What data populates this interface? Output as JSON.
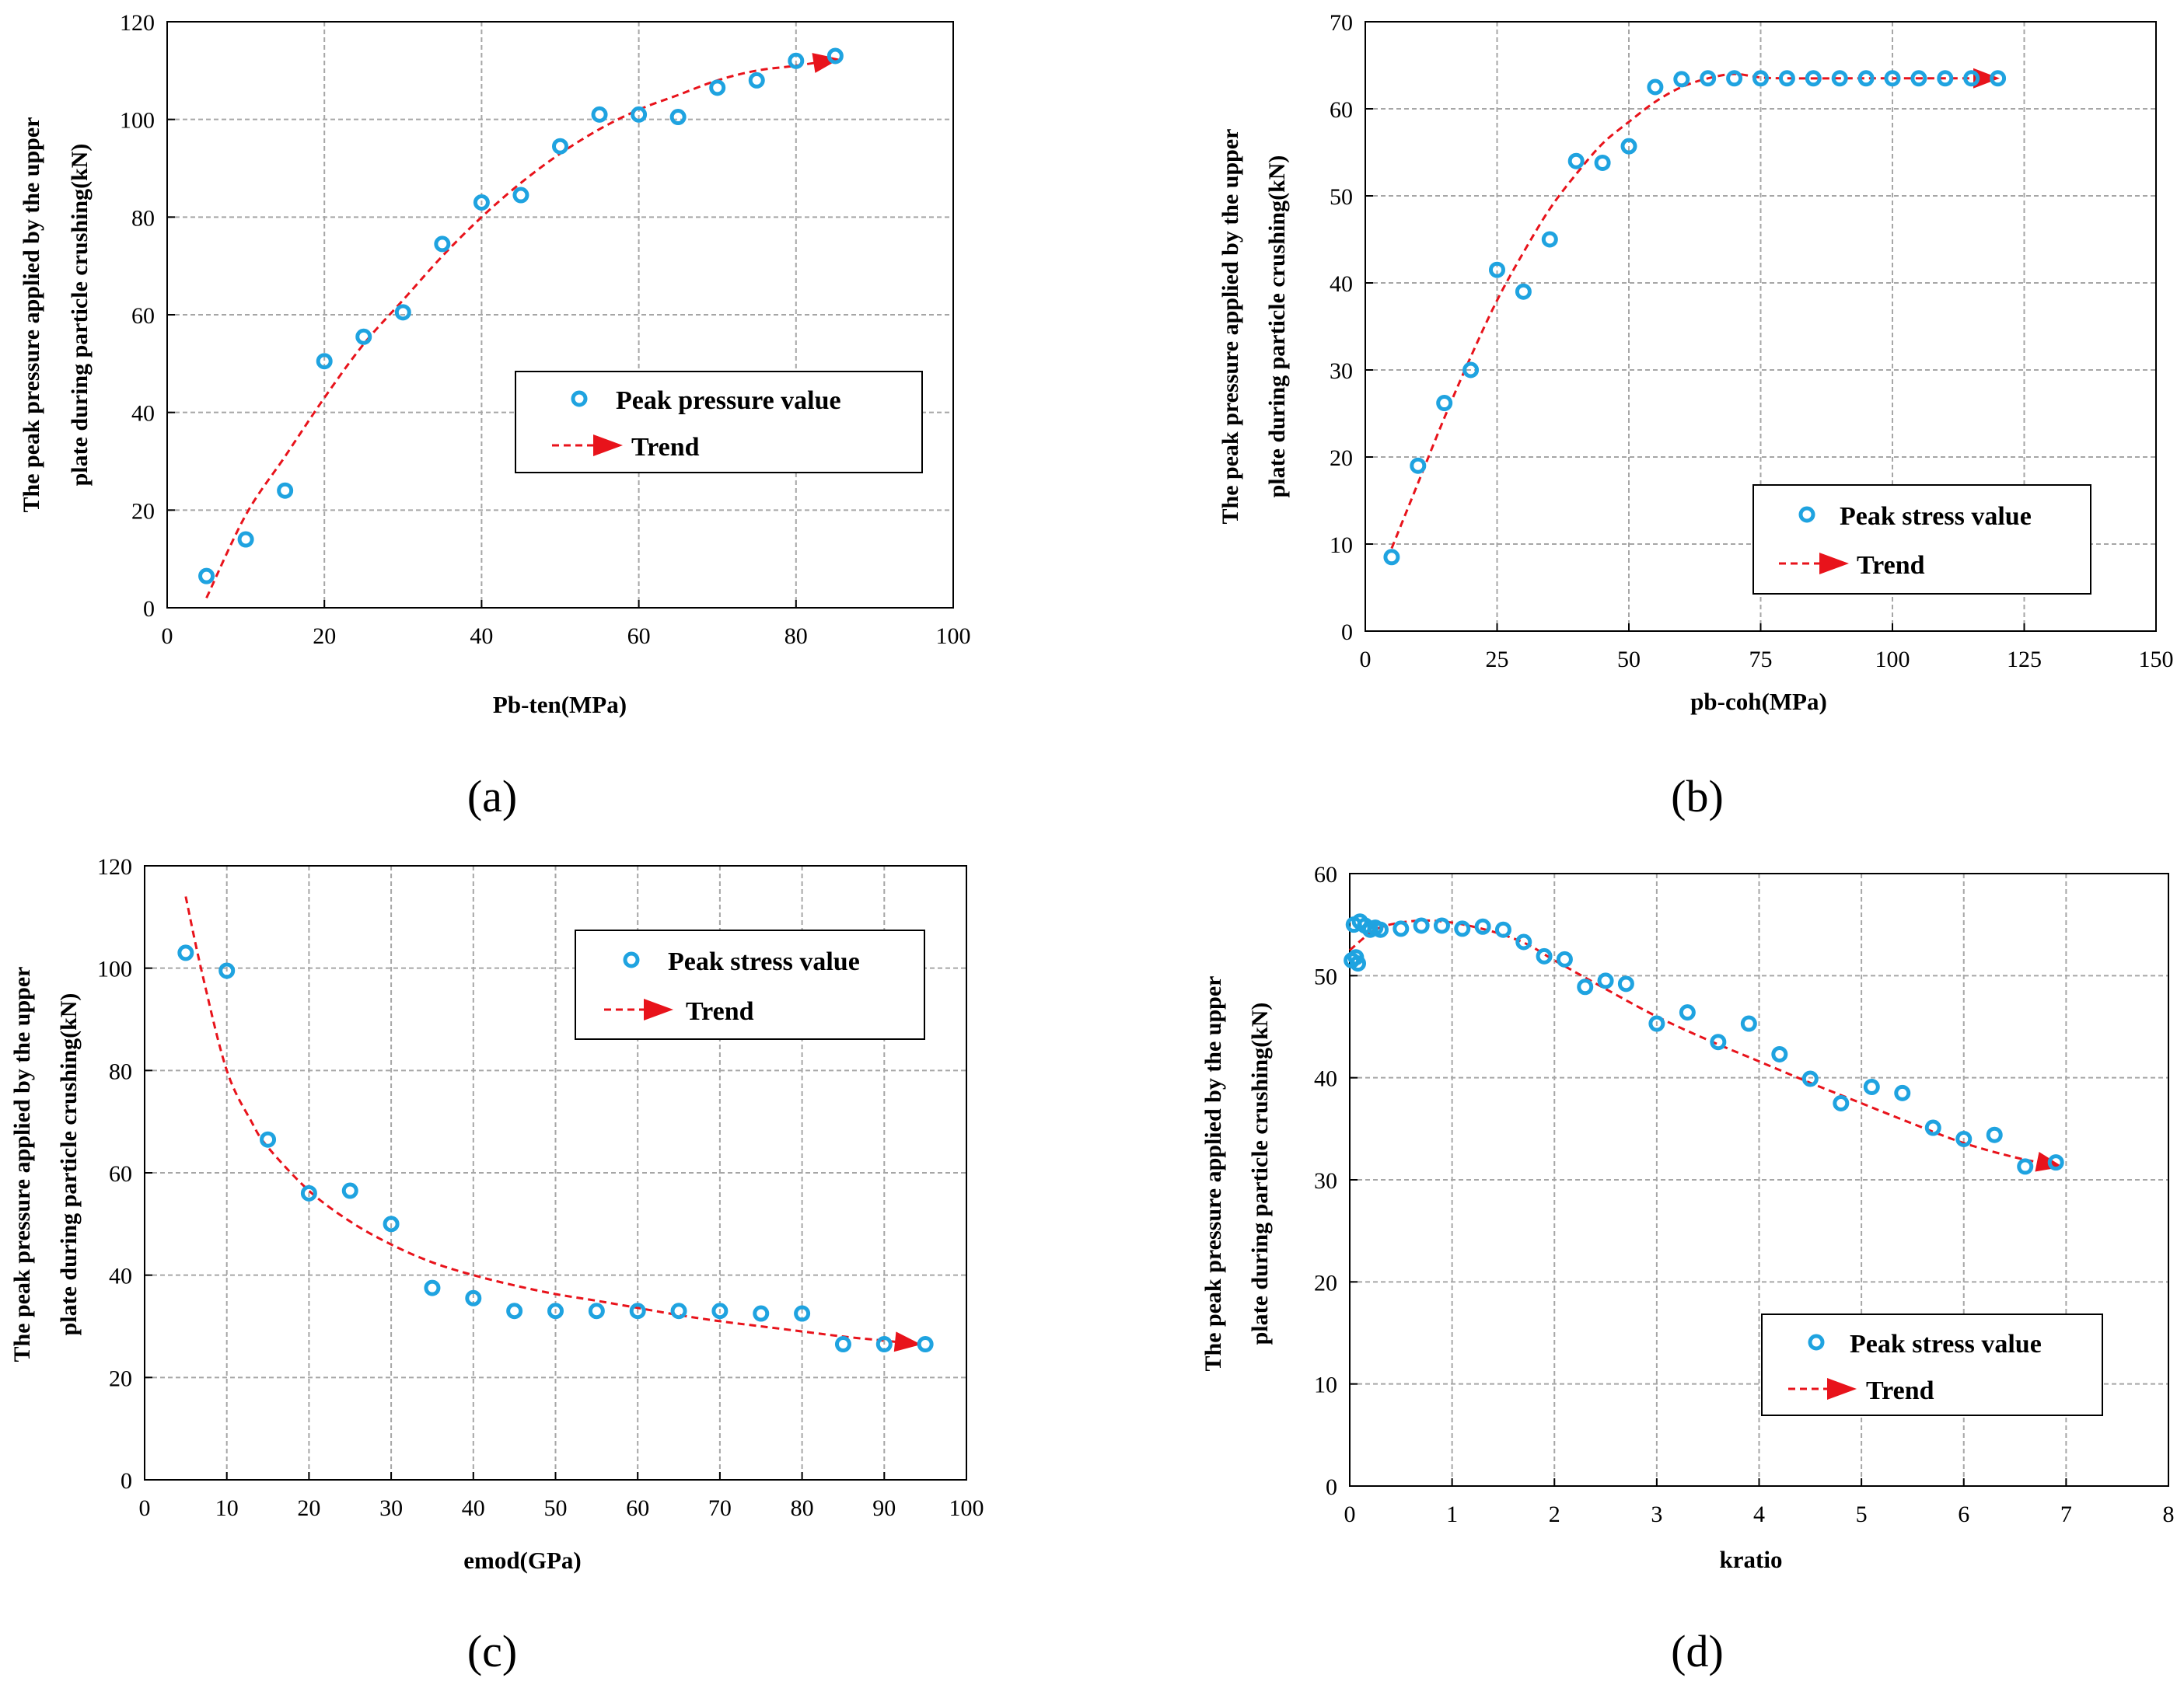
{
  "figure": {
    "panel_labels": [
      "(a)",
      "(b)",
      "(c)",
      "(d)"
    ],
    "colors": {
      "marker": "#1fa3e0",
      "trend": "#e8131b",
      "grid": "#a6a6a6",
      "axis": "#000000"
    }
  },
  "chart_data": [
    {
      "id": "a",
      "type": "scatter",
      "title": "",
      "xlabel": "Pb-ten(MPa)",
      "ylabel_lines": [
        "The peak pressure applied by the upper",
        "plate during particle crushing(kN)"
      ],
      "xlim": [
        0,
        100
      ],
      "ylim": [
        0,
        120
      ],
      "xticks": [
        0,
        20,
        40,
        60,
        80,
        100
      ],
      "yticks": [
        0,
        20,
        40,
        60,
        80,
        100,
        120
      ],
      "xtick_labels": [
        "0",
        "20",
        "40",
        "60",
        "80",
        "100"
      ],
      "ytick_labels": [
        "0",
        "20",
        "40",
        "60",
        "80",
        "100",
        "120"
      ],
      "grid": true,
      "legend_position": "center-right",
      "series": [
        {
          "name": "Peak pressure value",
          "kind": "markers",
          "x": [
            5,
            10,
            15,
            20,
            25,
            30,
            35,
            40,
            45,
            50,
            55,
            60,
            65,
            70,
            75,
            80,
            85
          ],
          "y": [
            6.5,
            14,
            24,
            50.5,
            55.5,
            60.5,
            74.5,
            83,
            84.5,
            94.5,
            101,
            101,
            100.5,
            106.5,
            108,
            112,
            113
          ]
        },
        {
          "name": "Trend",
          "kind": "trend",
          "x": [
            5,
            10,
            15,
            20,
            25,
            30,
            35,
            40,
            45,
            50,
            55,
            60,
            65,
            70,
            75,
            80,
            84
          ],
          "y": [
            2,
            19,
            31,
            43,
            54,
            63,
            72,
            80,
            87,
            93,
            98,
            102,
            105,
            108,
            110,
            111,
            112
          ]
        }
      ]
    },
    {
      "id": "b",
      "type": "scatter",
      "title": "",
      "xlabel": "pb-coh(MPa)",
      "ylabel_lines": [
        "The peak pressure applied by the upper",
        "plate during particle crushing(kN)"
      ],
      "xlim": [
        0,
        150
      ],
      "ylim": [
        0,
        70
      ],
      "xticks": [
        0,
        25,
        50,
        75,
        100,
        125,
        150
      ],
      "yticks": [
        0,
        10,
        20,
        30,
        40,
        50,
        60,
        70
      ],
      "xtick_labels": [
        "0",
        "25",
        "50",
        "75",
        "100",
        "125",
        "150"
      ],
      "ytick_labels": [
        "0",
        "10",
        "20",
        "30",
        "40",
        "50",
        "60",
        "70"
      ],
      "grid": true,
      "legend_position": "bottom-right",
      "series": [
        {
          "name": "Peak stress value",
          "kind": "markers",
          "x": [
            5,
            10,
            15,
            20,
            25,
            30,
            35,
            40,
            45,
            50,
            55,
            60,
            65,
            70,
            75,
            80,
            85,
            90,
            95,
            100,
            105,
            110,
            115,
            120
          ],
          "y": [
            8.5,
            19,
            26.2,
            30,
            41.5,
            39,
            45,
            54,
            53.8,
            55.7,
            62.5,
            63.4,
            63.5,
            63.5,
            63.5,
            63.5,
            63.5,
            63.5,
            63.5,
            63.5,
            63.5,
            63.5,
            63.5,
            63.5
          ]
        },
        {
          "name": "Trend",
          "kind": "trend",
          "x": [
            5,
            10,
            15,
            20,
            25,
            30,
            35,
            40,
            45,
            50,
            55,
            60,
            65,
            70,
            75,
            80,
            90,
            100,
            110,
            118
          ],
          "y": [
            9.5,
            17,
            24.5,
            31.5,
            38,
            43.5,
            48.5,
            52.5,
            56,
            58.5,
            60.8,
            62.5,
            63.5,
            64,
            63.6,
            63.5,
            63.5,
            63.5,
            63.5,
            63.5
          ]
        }
      ]
    },
    {
      "id": "c",
      "type": "scatter",
      "title": "",
      "xlabel": "emod(GPa)",
      "ylabel_lines": [
        "The peak pressure applied by the upper",
        "plate during particle crushing(kN)"
      ],
      "xlim": [
        0,
        100
      ],
      "ylim": [
        0,
        120
      ],
      "xticks": [
        0,
        10,
        20,
        30,
        40,
        50,
        60,
        70,
        80,
        90,
        100
      ],
      "yticks": [
        0,
        20,
        40,
        60,
        80,
        100,
        120
      ],
      "xtick_labels": [
        "0",
        "10",
        "20",
        "30",
        "40",
        "50",
        "60",
        "70",
        "80",
        "90",
        "100"
      ],
      "ytick_labels": [
        "0",
        "20",
        "40",
        "60",
        "80",
        "100",
        "120"
      ],
      "grid": true,
      "legend_position": "top-right",
      "series": [
        {
          "name": "Peak stress value",
          "kind": "markers",
          "x": [
            5,
            10,
            15,
            20,
            25,
            30,
            35,
            40,
            45,
            50,
            55,
            60,
            65,
            70,
            75,
            80,
            85,
            90,
            95
          ],
          "y": [
            103,
            99.5,
            66.5,
            56,
            56.5,
            50,
            37.5,
            35.5,
            33,
            33,
            33,
            33,
            33,
            33,
            32.5,
            32.5,
            26.5,
            26.5,
            26.5
          ]
        },
        {
          "name": "Trend",
          "kind": "trend",
          "x": [
            5,
            7,
            10,
            13,
            15,
            20,
            25,
            30,
            35,
            40,
            45,
            50,
            55,
            60,
            65,
            70,
            75,
            80,
            85,
            90,
            93
          ],
          "y": [
            114,
            99,
            80,
            70,
            65,
            56.5,
            50.5,
            46,
            42.5,
            40,
            38,
            36.3,
            35,
            33.6,
            32.2,
            31,
            30,
            29,
            28,
            27.2,
            26.7
          ]
        }
      ]
    },
    {
      "id": "d",
      "type": "scatter",
      "title": "",
      "xlabel": "kratio",
      "ylabel_lines": [
        "The peak pressure applied by the upper",
        "plate during particle crushing(kN)"
      ],
      "xlim": [
        0,
        8
      ],
      "ylim": [
        0,
        60
      ],
      "xticks": [
        0,
        1,
        2,
        3,
        4,
        5,
        6,
        7,
        8
      ],
      "yticks": [
        0,
        10,
        20,
        30,
        40,
        50,
        60
      ],
      "xtick_labels": [
        "0",
        "1",
        "2",
        "3",
        "4",
        "5",
        "6",
        "7",
        "8"
      ],
      "ytick_labels": [
        "0",
        "10",
        "20",
        "30",
        "40",
        "50",
        "60"
      ],
      "grid": true,
      "legend_position": "bottom-right",
      "series": [
        {
          "name": "Peak stress value",
          "kind": "markers",
          "x": [
            0.02,
            0.04,
            0.06,
            0.08,
            0.1,
            0.15,
            0.2,
            0.25,
            0.3,
            0.5,
            0.7,
            0.9,
            1.1,
            1.3,
            1.5,
            1.7,
            1.9,
            2.1,
            2.3,
            2.5,
            2.7,
            3.0,
            3.3,
            3.6,
            3.9,
            4.2,
            4.5,
            4.8,
            5.1,
            5.4,
            5.7,
            6.0,
            6.3,
            6.6,
            6.9
          ],
          "y": [
            51.5,
            55,
            51.8,
            51.2,
            55.3,
            54.9,
            54.5,
            54.7,
            54.5,
            54.6,
            54.9,
            54.9,
            54.6,
            54.8,
            54.5,
            53.3,
            51.9,
            51.6,
            48.9,
            49.5,
            49.2,
            45.3,
            46.4,
            43.5,
            45.3,
            42.3,
            39.9,
            37.5,
            39.1,
            38.5,
            35.1,
            34,
            34.4,
            31.3,
            31.7
          ]
        },
        {
          "name": "Trend",
          "kind": "trend",
          "x": [
            0,
            0.25,
            0.5,
            0.75,
            1.0,
            1.25,
            1.5,
            1.75,
            2.0,
            2.5,
            3.0,
            3.5,
            4.0,
            4.5,
            5.0,
            5.5,
            6.0,
            6.5,
            6.85
          ],
          "y": [
            52.5,
            54.5,
            55.2,
            55.4,
            55.2,
            54.7,
            54,
            53,
            51.5,
            48.7,
            46,
            43.7,
            41.6,
            39.5,
            37.5,
            35.5,
            33.6,
            32.2,
            31.5
          ]
        }
      ]
    }
  ]
}
